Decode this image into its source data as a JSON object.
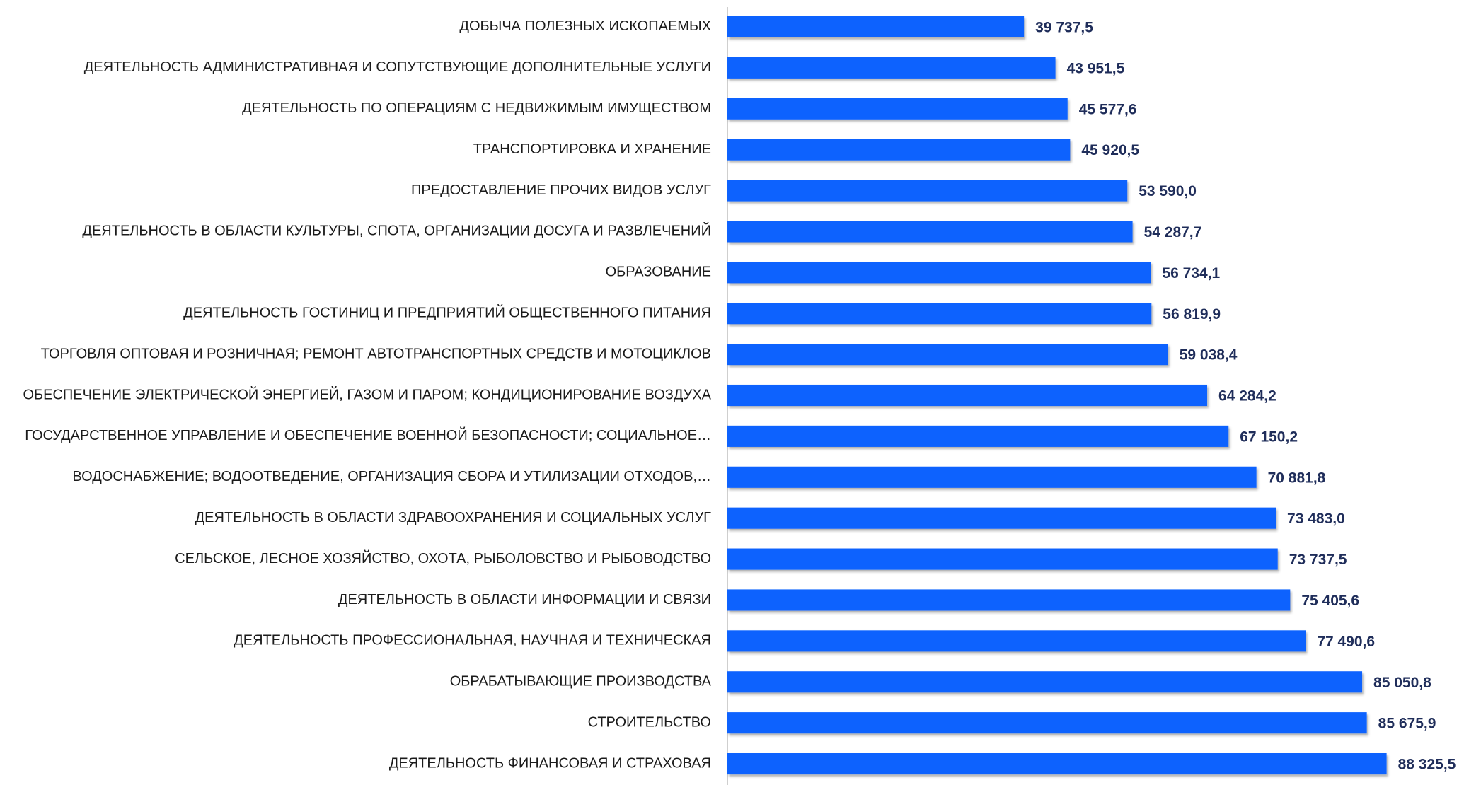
{
  "chart_data": {
    "type": "barh",
    "categories": [
      "ДОБЫЧА ПОЛЕЗНЫХ ИСКОПАЕМЫХ",
      "ДЕЯТЕЛЬНОСТЬ АДМИНИСТРАТИВНАЯ И СОПУТСТВУЮЩИЕ ДОПОЛНИТЕЛЬНЫЕ УСЛУГИ",
      "ДЕЯТЕЛЬНОСТЬ ПО ОПЕРАЦИЯМ С НЕДВИЖИМЫМ ИМУЩЕСТВОМ",
      "ТРАНСПОРТИРОВКА И ХРАНЕНИЕ",
      "ПРЕДОСТАВЛЕНИЕ ПРОЧИХ ВИДОВ УСЛУГ",
      "ДЕЯТЕЛЬНОСТЬ В ОБЛАСТИ КУЛЬТУРЫ, СПОТА, ОРГАНИЗАЦИИ ДОСУГА И РАЗВЛЕЧЕНИЙ",
      "ОБРАЗОВАНИЕ",
      "ДЕЯТЕЛЬНОСТЬ ГОСТИНИЦ И ПРЕДПРИЯТИЙ ОБЩЕСТВЕННОГО ПИТАНИЯ",
      "ТОРГОВЛЯ ОПТОВАЯ И РОЗНИЧНАЯ; РЕМОНТ АВТОТРАНСПОРТНЫХ СРЕДСТВ И МОТОЦИКЛОВ",
      "ОБЕСПЕЧЕНИЕ ЭЛЕКТРИЧЕСКОЙ ЭНЕРГИЕЙ, ГАЗОМ И ПАРОМ; КОНДИЦИОНИРОВАНИЕ ВОЗДУХА",
      "ГОСУДАРСТВЕННОЕ УПРАВЛЕНИЕ И ОБЕСПЕЧЕНИЕ ВОЕННОЙ БЕЗОПАСНОСТИ; СОЦИАЛЬНОЕ…",
      "ВОДОСНАБЖЕНИЕ; ВОДООТВЕДЕНИЕ, ОРГАНИЗАЦИЯ СБОРА И УТИЛИЗАЦИИ ОТХОДОВ,…",
      "ДЕЯТЕЛЬНОСТЬ В ОБЛАСТИ ЗДРАВООХРАНЕНИЯ И СОЦИАЛЬНЫХ УСЛУГ",
      "СЕЛЬСКОЕ, ЛЕСНОЕ ХОЗЯЙСТВО, ОХОТА, РЫБОЛОВСТВО И РЫБОВОДСТВО",
      "ДЕЯТЕЛЬНОСТЬ В ОБЛАСТИ ИНФОРМАЦИИ И СВЯЗИ",
      "ДЕЯТЕЛЬНОСТЬ ПРОФЕССИОНАЛЬНАЯ, НАУЧНАЯ И ТЕХНИЧЕСКАЯ",
      "ОБРАБАТЫВАЮЩИЕ ПРОИЗВОДСТВА",
      "СТРОИТЕЛЬСТВО",
      "ДЕЯТЕЛЬНОСТЬ ФИНАНСОВАЯ И СТРАХОВАЯ"
    ],
    "values": [
      39737.5,
      43951.5,
      45577.6,
      45920.5,
      53590.0,
      54287.7,
      56734.1,
      56819.9,
      59038.4,
      64284.2,
      67150.2,
      70881.8,
      73483.0,
      73737.5,
      75405.6,
      77490.6,
      85050.8,
      85675.9,
      88325.5
    ],
    "value_labels": [
      "39 737,5",
      "43 951,5",
      "45 577,6",
      "45 920,5",
      "53 590,0",
      "54 287,7",
      "56 734,1",
      "56 819,9",
      "59 038,4",
      "64 284,2",
      "67 150,2",
      "70 881,8",
      "73 483,0",
      "73 737,5",
      "75 405,6",
      "77 490,6",
      "85 050,8",
      "85 675,9",
      "88 325,5"
    ],
    "color": "#0f62fe",
    "xlim": [
      0,
      95000
    ]
  }
}
